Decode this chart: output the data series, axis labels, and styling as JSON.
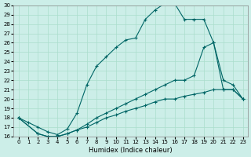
{
  "bg_color": "#cceee8",
  "grid_color": "#aaddcc",
  "line_color": "#006666",
  "xlabel": "Humidex (Indice chaleur)",
  "xlim": [
    -0.5,
    23.5
  ],
  "ylim": [
    16,
    30
  ],
  "xticks": [
    0,
    1,
    2,
    3,
    4,
    5,
    6,
    7,
    8,
    9,
    10,
    11,
    12,
    13,
    14,
    15,
    16,
    17,
    18,
    19,
    20,
    21,
    22,
    23
  ],
  "yticks": [
    16,
    17,
    18,
    19,
    20,
    21,
    22,
    23,
    24,
    25,
    26,
    27,
    28,
    29,
    30
  ],
  "line1_x": [
    0,
    1,
    2,
    3,
    4,
    5,
    6,
    7,
    8,
    9,
    10,
    11,
    12,
    13,
    14,
    15,
    16,
    17,
    18,
    19,
    20,
    21,
    22,
    23
  ],
  "line1_y": [
    18,
    17.5,
    17.0,
    16.5,
    16.2,
    16.8,
    18.5,
    21.5,
    23.5,
    24.5,
    25.5,
    26.3,
    26.5,
    28.5,
    29.5,
    30.2,
    30.2,
    28.5,
    28.5,
    28.5,
    26.0,
    21.0,
    21.0,
    20.0
  ],
  "line2_x": [
    0,
    2,
    3,
    4,
    5,
    6,
    7,
    8,
    9,
    10,
    11,
    12,
    13,
    14,
    15,
    16,
    17,
    18,
    19,
    20,
    21,
    22,
    23
  ],
  "line2_y": [
    18,
    16.3,
    16.0,
    16.0,
    16.3,
    16.7,
    17.3,
    18.0,
    18.5,
    19.0,
    19.5,
    20.0,
    20.5,
    21.0,
    21.5,
    22.0,
    22.0,
    22.5,
    25.5,
    26.0,
    22.0,
    21.5,
    20.0
  ],
  "line3_x": [
    0,
    2,
    3,
    4,
    5,
    6,
    7,
    8,
    9,
    10,
    11,
    12,
    13,
    14,
    15,
    16,
    17,
    18,
    19,
    20,
    21,
    22,
    23
  ],
  "line3_y": [
    18,
    16.3,
    16.0,
    16.0,
    16.3,
    16.7,
    17.0,
    17.5,
    18.0,
    18.3,
    18.7,
    19.0,
    19.3,
    19.7,
    20.0,
    20.0,
    20.3,
    20.5,
    20.7,
    21.0,
    21.0,
    21.0,
    20.0
  ]
}
